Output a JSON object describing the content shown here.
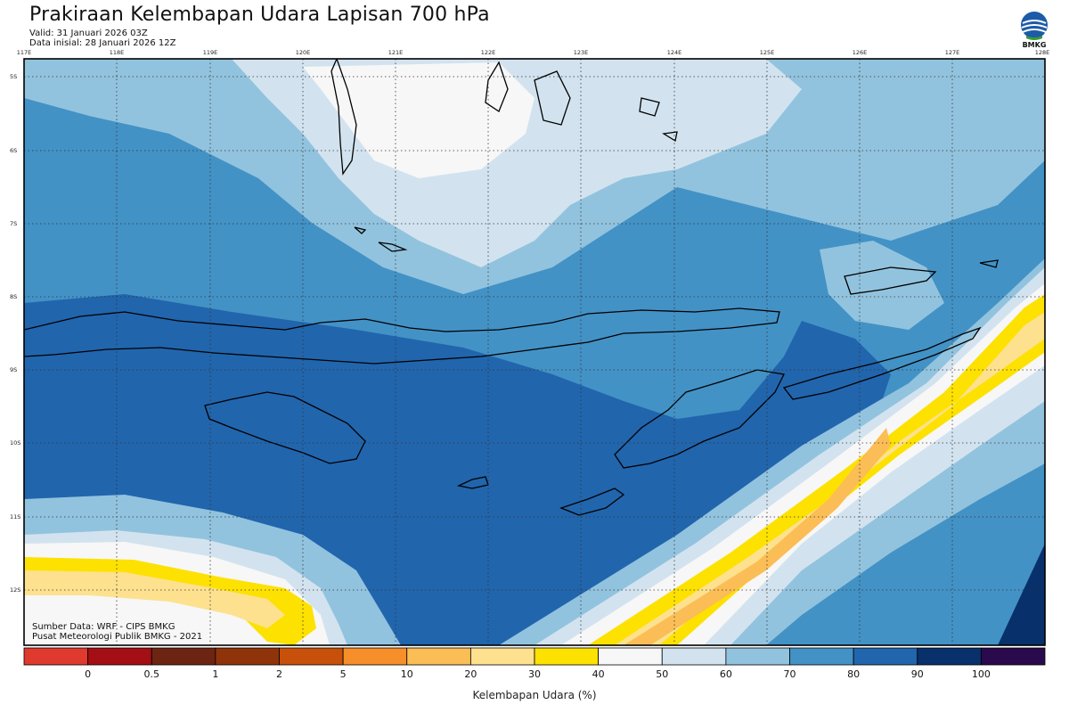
{
  "header": {
    "title": "Prakiraan Kelembapan Udara Lapisan 700 hPa",
    "valid": "Valid: 31 Januari 2026 03Z",
    "initial": "Data inisial: 28 Januari 2026 12Z",
    "logo_text": "BMKG"
  },
  "map": {
    "lon_labels": [
      "117E",
      "118E",
      "119E",
      "120E",
      "121E",
      "122E",
      "123E",
      "124E",
      "125E",
      "126E",
      "127E",
      "128E"
    ],
    "lat_labels": [
      "5S",
      "6S",
      "7S",
      "8S",
      "9S",
      "10S",
      "11S",
      "12S"
    ],
    "credit_source": "Sumber Data: WRF - CIPS BMKG",
    "credit_org": "Pusat Meteorologi Publik BMKG - 2021"
  },
  "colorbar": {
    "ticks": [
      "0",
      "0.5",
      "1",
      "2",
      "5",
      "10",
      "20",
      "30",
      "40",
      "50",
      "60",
      "70",
      "80",
      "90",
      "100"
    ],
    "colors": [
      "#e03a2f",
      "#a30f14",
      "#6d2412",
      "#8f330a",
      "#c7500a",
      "#f68f2a",
      "#fbbd55",
      "#fde18f",
      "#fde101",
      "#f7f7f7",
      "#d2e3ef",
      "#92c3de",
      "#4392c6",
      "#2165ad",
      "#08306b",
      "#2a0a4c"
    ],
    "label": "Kelembapan Udara (%)"
  }
}
